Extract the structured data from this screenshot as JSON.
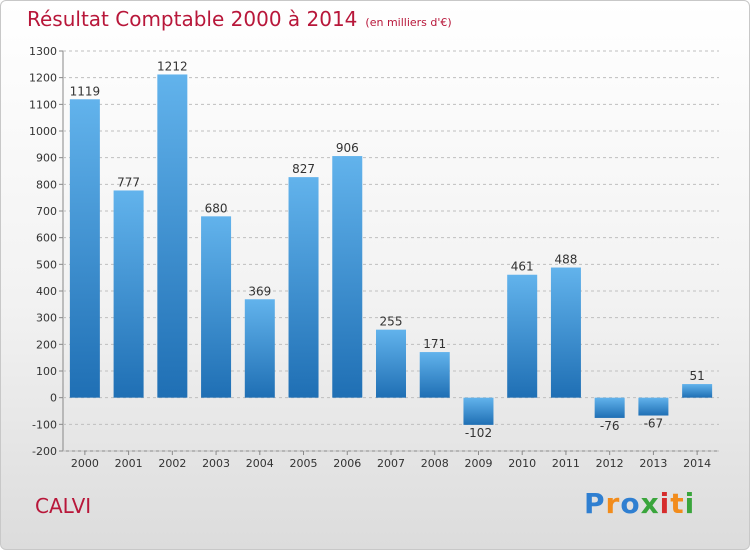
{
  "title": "Résultat Comptable 2000 à 2014",
  "subtitle": "(en milliers d'€)",
  "location": "CALVI",
  "brand": {
    "name": "Proxiti",
    "colors": [
      "#2f7fd1",
      "#f28c1c",
      "#2f7fd1",
      "#3aa53c",
      "#d62d2d",
      "#f28c1c",
      "#3aa53c"
    ]
  },
  "colors": {
    "title": "#b8173a",
    "bar_light": "#62b3ec",
    "bar_dark": "#1f6fb4"
  },
  "chart_data": {
    "type": "bar",
    "categories": [
      "2000",
      "2001",
      "2002",
      "2003",
      "2004",
      "2005",
      "2006",
      "2007",
      "2008",
      "2009",
      "2010",
      "2011",
      "2012",
      "2013",
      "2014"
    ],
    "values": [
      1119,
      777,
      1212,
      680,
      369,
      827,
      906,
      255,
      171,
      -102,
      461,
      488,
      -76,
      -67,
      51
    ],
    "value_labels": [
      "1119",
      "777",
      "1212",
      "680",
      "369",
      "827",
      "906",
      "255",
      "171",
      "-102",
      "461",
      "488",
      "-76",
      "-67",
      "51"
    ],
    "ylim": [
      -200,
      1300
    ],
    "yticks": [
      -200,
      -100,
      0,
      100,
      200,
      300,
      400,
      500,
      600,
      700,
      800,
      900,
      1000,
      1100,
      1200,
      1300
    ],
    "ytick_labels": [
      "-200",
      "-100",
      "0",
      "100",
      "200",
      "300",
      "400",
      "500",
      "600",
      "700",
      "800",
      "900",
      "1000",
      "1100",
      "1200",
      "1300"
    ],
    "grid": "horizontal dashed"
  }
}
